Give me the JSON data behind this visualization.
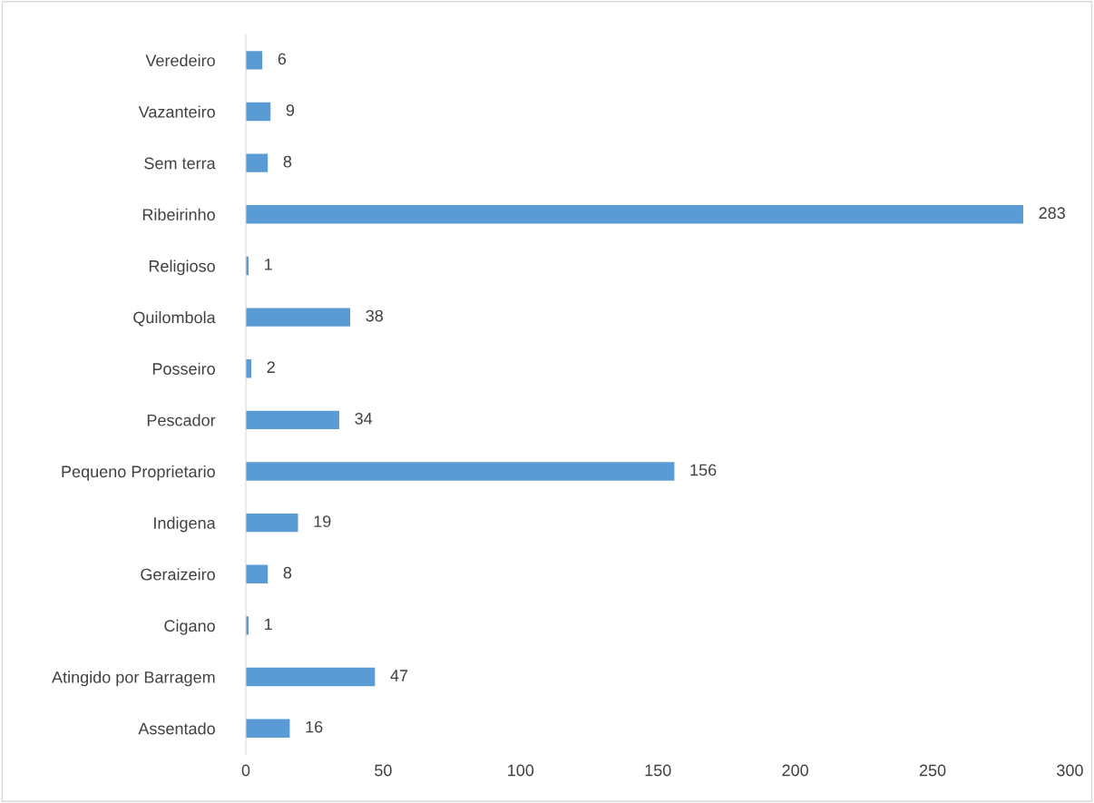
{
  "chart_data": {
    "type": "bar",
    "orientation": "horizontal",
    "categories": [
      "Veredeiro",
      "Vazanteiro",
      "Sem terra",
      "Ribeirinho",
      "Religioso",
      "Quilombola",
      "Posseiro",
      "Pescador",
      "Pequeno Proprietario",
      "Indigena",
      "Geraizeiro",
      "Cigano",
      "Atingido por Barragem",
      "Assentado"
    ],
    "values": [
      6,
      9,
      8,
      283,
      1,
      38,
      2,
      34,
      156,
      19,
      8,
      1,
      47,
      16
    ],
    "color": "#5b9bd5",
    "xlim": [
      0,
      300
    ],
    "xticks": [
      0,
      50,
      100,
      150,
      200,
      250,
      300
    ],
    "data_labels": true,
    "grid": false
  }
}
